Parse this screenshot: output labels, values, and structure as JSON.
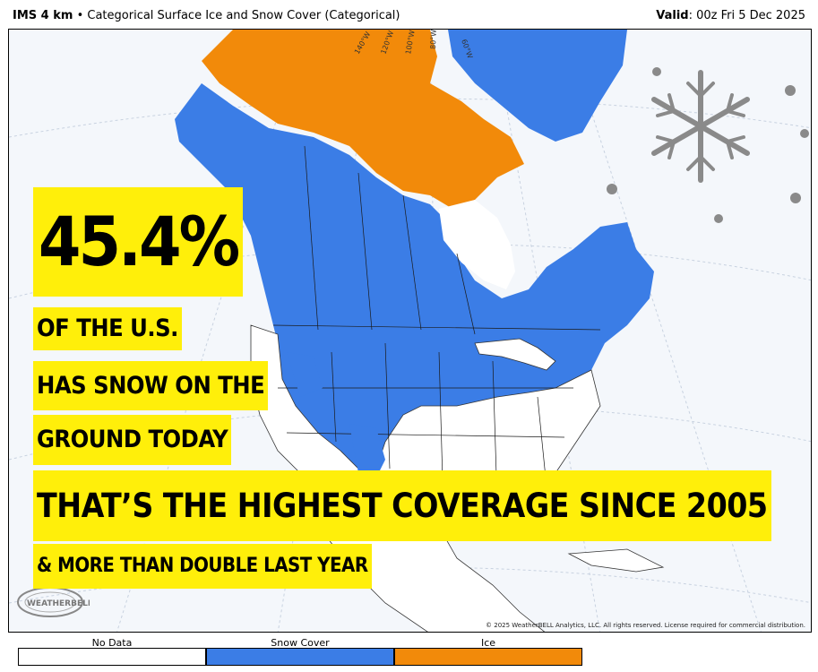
{
  "header": {
    "product": "IMS 4 km",
    "bullet": "•",
    "title": "Categorical Surface Ice and Snow Cover (Categorical)",
    "valid_label": "Valid",
    "valid_value": ": 00z Fri 5 Dec 2025"
  },
  "map": {
    "longitude_labels": [
      "140°W",
      "120°W",
      "100°W",
      "80°W",
      "60°W"
    ],
    "logo_text": "WEATHERBELL",
    "copyright": "© 2025 WeatherBELL Analytics, LLC. All rights reserved. License required for commercial distribution."
  },
  "overlay": {
    "percent": "45.4%",
    "line1": "OF THE U.S.",
    "line2": "HAS SNOW ON THE",
    "line3": "GROUND TODAY",
    "line4": "THAT’S THE HIGHEST COVERAGE SINCE 2005",
    "line5": "& MORE THAN DOUBLE LAST YEAR"
  },
  "legend": {
    "items": [
      {
        "label": "No Data",
        "color": "#ffffff"
      },
      {
        "label": "Snow Cover",
        "color": "#3b7de6"
      },
      {
        "label": "Ice",
        "color": "#f28a0a"
      }
    ]
  },
  "colors": {
    "snow": "#3b7de6",
    "ice": "#f28a0a",
    "land_bare": "#ffffff",
    "water": "#f4f7fb",
    "highlight": "#ffef0a"
  }
}
